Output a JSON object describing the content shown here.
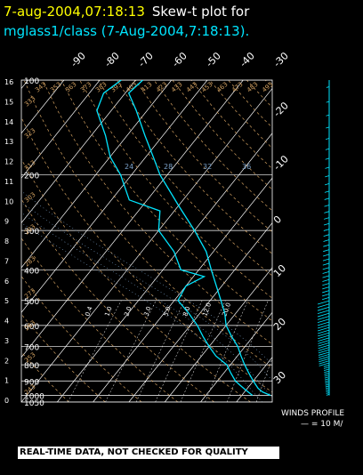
{
  "header": {
    "date_time": "7-aug-2004,07:18:13",
    "plot_label": "Skew-t plot for",
    "subtitle": "mglass1/class (7-Aug-2004,7:18:13)."
  },
  "footer": {
    "warning": "REAL-TIME DATA, NOT CHECKED FOR QUALITY",
    "winds_label": "WINDS PROFILE",
    "winds_scale": "— = 10 M/"
  },
  "colors": {
    "date": "#ffff00",
    "subtitle": "#00e5ff",
    "trace": "#00e5ff",
    "isotherm": "#ffffff",
    "dry_adiabat": "#d2a060",
    "moist_adiabat": "#7aa0c8",
    "mixing_ratio": "#ffffff",
    "warning_bg": "#ffffff"
  },
  "chart_data": {
    "type": "skew-t",
    "pressure_levels": [
      100,
      200,
      300,
      400,
      500,
      600,
      700,
      800,
      900,
      1000,
      1050
    ],
    "height_km_ticks": [
      16,
      15,
      14,
      13,
      12,
      11,
      10,
      9,
      8,
      7,
      6,
      5,
      4,
      3,
      2,
      1,
      0
    ],
    "isotherm_labels_top": [
      "-90",
      "-80",
      "-70",
      "-60",
      "-50",
      "-40",
      "-30"
    ],
    "isotherm_labels_right": [
      "-20",
      "-10",
      "0",
      "10",
      "20",
      "30"
    ],
    "isotherm_values": [
      -120,
      -110,
      -100,
      -90,
      -80,
      -70,
      -60,
      -50,
      -40,
      -30,
      -20,
      -10,
      0,
      10,
      20,
      30,
      40
    ],
    "dry_adiabat_labels": [
      "243",
      "253",
      "263",
      "273",
      "283",
      "293",
      "303",
      "313",
      "323",
      "333",
      "343",
      "353",
      "363",
      "373",
      "383",
      "393",
      "403",
      "413",
      "423",
      "433",
      "443",
      "453",
      "463",
      "473",
      "483",
      "493"
    ],
    "dry_adiabat_values": [
      243,
      253,
      263,
      273,
      283,
      293,
      303,
      313,
      323,
      333,
      343,
      353,
      363,
      373,
      383,
      393,
      403,
      413,
      423,
      433,
      443,
      453,
      463,
      473,
      483,
      493
    ],
    "moist_adiabat_labels": [
      "24",
      "28",
      "32",
      "36"
    ],
    "moist_adiabat_values": [
      24,
      28,
      32,
      36
    ],
    "mixing_ratio_labels": [
      "0.4",
      "1.0",
      "2.0",
      "3.0",
      "5.0",
      "8.0",
      "12.0",
      "20.0"
    ],
    "mixing_ratio_values": [
      0.4,
      1.0,
      2.0,
      3.0,
      5.0,
      8.0,
      12.0,
      20.0
    ],
    "temperature_profile": [
      {
        "p": 1000,
        "t": 28
      },
      {
        "p": 975,
        "t": 25
      },
      {
        "p": 950,
        "t": 23
      },
      {
        "p": 925,
        "t": 21.5
      },
      {
        "p": 900,
        "t": 20
      },
      {
        "p": 850,
        "t": 17
      },
      {
        "p": 800,
        "t": 14
      },
      {
        "p": 750,
        "t": 11
      },
      {
        "p": 700,
        "t": 8
      },
      {
        "p": 650,
        "t": 4
      },
      {
        "p": 600,
        "t": 0
      },
      {
        "p": 550,
        "t": -3
      },
      {
        "p": 500,
        "t": -7
      },
      {
        "p": 450,
        "t": -11.5
      },
      {
        "p": 400,
        "t": -16.5
      },
      {
        "p": 350,
        "t": -22
      },
      {
        "p": 300,
        "t": -30
      },
      {
        "p": 250,
        "t": -40
      },
      {
        "p": 200,
        "t": -52
      },
      {
        "p": 175,
        "t": -58
      },
      {
        "p": 150,
        "t": -65
      },
      {
        "p": 125,
        "t": -73
      },
      {
        "p": 110,
        "t": -79
      },
      {
        "p": 100,
        "t": -78
      }
    ],
    "dewpoint_profile": [
      {
        "p": 1000,
        "t": 23
      },
      {
        "p": 975,
        "t": 21
      },
      {
        "p": 950,
        "t": 19
      },
      {
        "p": 925,
        "t": 17
      },
      {
        "p": 900,
        "t": 15
      },
      {
        "p": 850,
        "t": 12
      },
      {
        "p": 800,
        "t": 9
      },
      {
        "p": 750,
        "t": 4
      },
      {
        "p": 700,
        "t": 0
      },
      {
        "p": 650,
        "t": -4
      },
      {
        "p": 600,
        "t": -8
      },
      {
        "p": 550,
        "t": -13
      },
      {
        "p": 500,
        "t": -19
      },
      {
        "p": 450,
        "t": -20
      },
      {
        "p": 420,
        "t": -17
      },
      {
        "p": 400,
        "t": -25
      },
      {
        "p": 350,
        "t": -31
      },
      {
        "p": 300,
        "t": -40
      },
      {
        "p": 260,
        "t": -44
      },
      {
        "p": 240,
        "t": -55
      },
      {
        "p": 200,
        "t": -63
      },
      {
        "p": 175,
        "t": -70
      },
      {
        "p": 150,
        "t": -76
      },
      {
        "p": 125,
        "t": -84
      },
      {
        "p": 110,
        "t": -86
      },
      {
        "p": 100,
        "t": -84
      }
    ],
    "wind_profile_note": "barbs plotted on right side"
  }
}
